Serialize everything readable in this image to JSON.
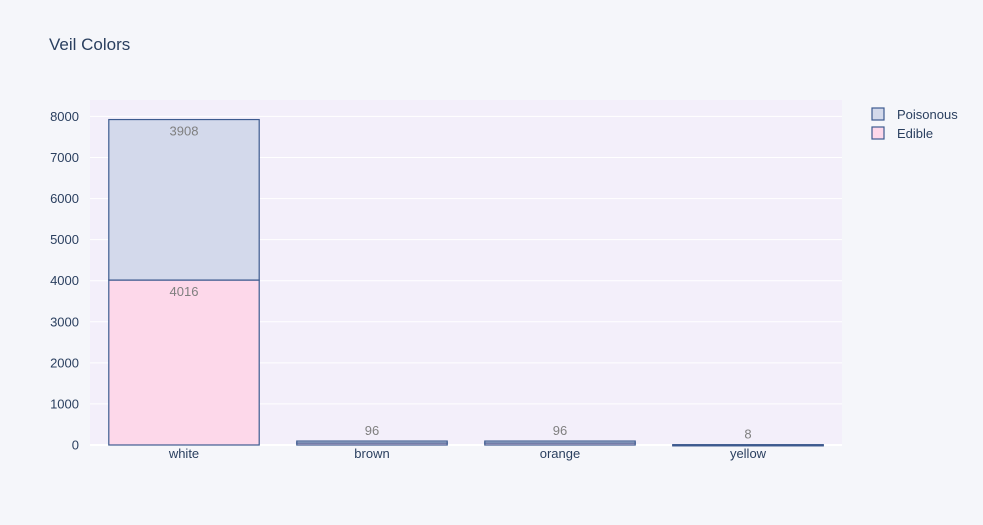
{
  "chart_data": {
    "type": "bar",
    "barmode": "stack",
    "title": "Veil Colors",
    "xlabel": "",
    "ylabel": "",
    "categories": [
      "white",
      "brown",
      "orange",
      "yellow"
    ],
    "series": [
      {
        "name": "Edible",
        "values": [
          4016,
          48,
          48,
          4
        ],
        "color": "#fdd8ea"
      },
      {
        "name": "Poisonous",
        "values": [
          3908,
          48,
          48,
          4
        ],
        "color": "#d3d9eb"
      }
    ],
    "data_labels": [
      {
        "category": "white",
        "series": "Poisonous",
        "text": "3908"
      },
      {
        "category": "white",
        "series": "Edible",
        "text": "4016"
      },
      {
        "category": "brown",
        "series": "Poisonous",
        "text": "96"
      },
      {
        "category": "orange",
        "series": "Poisonous",
        "text": "96"
      },
      {
        "category": "yellow",
        "series": "Poisonous",
        "text": "8"
      }
    ],
    "ylim": [
      0,
      8400
    ],
    "yticks": [
      0,
      1000,
      2000,
      3000,
      4000,
      5000,
      6000,
      7000,
      8000
    ],
    "grid": true,
    "legend_position": "top-right",
    "legend_order": [
      "Poisonous",
      "Edible"
    ],
    "colors": {
      "plot_bg": "#f3effa",
      "page_bg": "#f5f6fa",
      "bar_outline": "#3d5a8f",
      "grid": "#ffffff",
      "text": "#2a3f5f"
    }
  }
}
